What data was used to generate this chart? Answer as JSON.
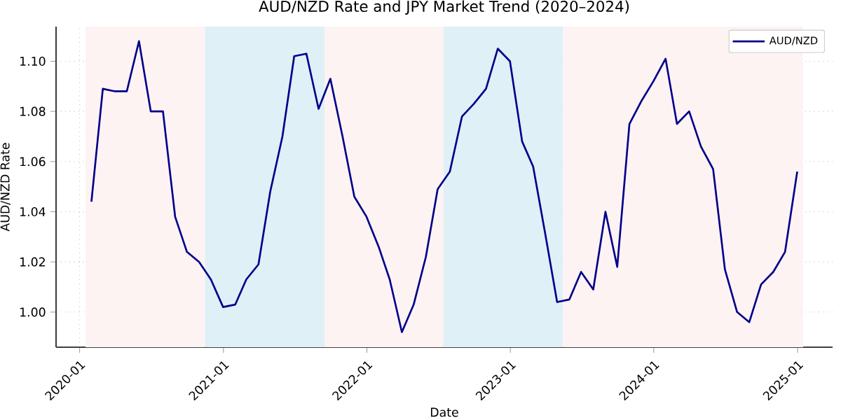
{
  "chart_data": {
    "type": "line",
    "title": "AUD/NZD Rate and JPY Market Trend (2020–2024)",
    "xlabel": "Date",
    "ylabel": "AUD/NZD Rate",
    "x": [
      "2020-01-31",
      "2020-02-29",
      "2020-03-31",
      "2020-04-30",
      "2020-05-31",
      "2020-06-30",
      "2020-07-31",
      "2020-08-31",
      "2020-09-30",
      "2020-10-31",
      "2020-11-30",
      "2020-12-31",
      "2021-01-31",
      "2021-02-28",
      "2021-03-31",
      "2021-04-30",
      "2021-05-31",
      "2021-06-30",
      "2021-07-31",
      "2021-08-31",
      "2021-09-30",
      "2021-10-31",
      "2021-11-30",
      "2021-12-31",
      "2022-01-31",
      "2022-02-28",
      "2022-03-31",
      "2022-04-30",
      "2022-05-31",
      "2022-06-30",
      "2022-07-31",
      "2022-08-31",
      "2022-09-30",
      "2022-10-31",
      "2022-11-30",
      "2022-12-31",
      "2023-01-31",
      "2023-02-28",
      "2023-03-31",
      "2023-04-30",
      "2023-05-31",
      "2023-06-30",
      "2023-07-31",
      "2023-08-31",
      "2023-09-30",
      "2023-10-31",
      "2023-11-30",
      "2023-12-31",
      "2024-01-31",
      "2024-02-29",
      "2024-03-31",
      "2024-04-30",
      "2024-05-31",
      "2024-06-30",
      "2024-07-31",
      "2024-08-31",
      "2024-09-30",
      "2024-10-31",
      "2024-11-30",
      "2024-12-31"
    ],
    "series": [
      {
        "name": "AUD/NZD",
        "color": "#00008b",
        "values": [
          1.044,
          1.089,
          1.088,
          1.088,
          1.108,
          1.08,
          1.08,
          1.038,
          1.024,
          1.02,
          1.013,
          1.002,
          1.003,
          1.013,
          1.019,
          1.048,
          1.07,
          1.102,
          1.103,
          1.081,
          1.093,
          1.07,
          1.046,
          1.038,
          1.026,
          1.013,
          0.992,
          1.003,
          1.022,
          1.049,
          1.056,
          1.078,
          1.083,
          1.089,
          1.105,
          1.1,
          1.068,
          1.058,
          1.031,
          1.004,
          1.005,
          1.016,
          1.009,
          1.04,
          1.018,
          1.075,
          1.084,
          1.092,
          1.101,
          1.075,
          1.08,
          1.066,
          1.057,
          1.017,
          1.0,
          0.996,
          1.011,
          1.016,
          1.024,
          1.056
        ]
      }
    ],
    "xlim": [
      "2019-11-02",
      "2025-03-31"
    ],
    "xticks": [
      {
        "value": "2020-01-01",
        "label": "2020-01"
      },
      {
        "value": "2021-01-01",
        "label": "2021-01"
      },
      {
        "value": "2022-01-01",
        "label": "2022-01"
      },
      {
        "value": "2023-01-01",
        "label": "2023-01"
      },
      {
        "value": "2024-01-01",
        "label": "2024-01"
      },
      {
        "value": "2025-01-01",
        "label": "2025-01"
      }
    ],
    "ylim": [
      0.986,
      1.1138
    ],
    "yticks": [
      {
        "value": 1.0,
        "label": "1.00"
      },
      {
        "value": 1.02,
        "label": "1.02"
      },
      {
        "value": 1.04,
        "label": "1.04"
      },
      {
        "value": 1.06,
        "label": "1.06"
      },
      {
        "value": 1.08,
        "label": "1.08"
      },
      {
        "value": 1.1,
        "label": "1.10"
      }
    ],
    "bands": [
      {
        "axis": "x",
        "from": "2020-01-16",
        "to": "2020-11-15",
        "color": "#fdf3f3"
      },
      {
        "axis": "x",
        "from": "2020-11-15",
        "to": "2021-09-15",
        "color": "#dff0f6"
      },
      {
        "axis": "x",
        "from": "2021-09-15",
        "to": "2022-07-15",
        "color": "#fdf3f3"
      },
      {
        "axis": "x",
        "from": "2022-07-15",
        "to": "2023-05-15",
        "color": "#dff0f6"
      },
      {
        "axis": "x",
        "from": "2023-05-15",
        "to": "2025-01-15",
        "color": "#fdf3f3"
      }
    ],
    "grid": true,
    "legend": "top right",
    "line_style": "solid",
    "marker": "none"
  }
}
